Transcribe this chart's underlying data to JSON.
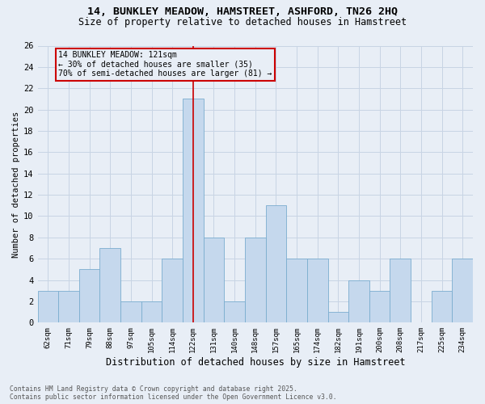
{
  "title_line1": "14, BUNKLEY MEADOW, HAMSTREET, ASHFORD, TN26 2HQ",
  "title_line2": "Size of property relative to detached houses in Hamstreet",
  "xlabel": "Distribution of detached houses by size in Hamstreet",
  "ylabel": "Number of detached properties",
  "categories": [
    "62sqm",
    "71sqm",
    "79sqm",
    "88sqm",
    "97sqm",
    "105sqm",
    "114sqm",
    "122sqm",
    "131sqm",
    "140sqm",
    "148sqm",
    "157sqm",
    "165sqm",
    "174sqm",
    "182sqm",
    "191sqm",
    "200sqm",
    "208sqm",
    "217sqm",
    "225sqm",
    "234sqm"
  ],
  "values": [
    3,
    3,
    5,
    7,
    2,
    2,
    6,
    21,
    8,
    2,
    8,
    11,
    6,
    6,
    1,
    4,
    3,
    6,
    0,
    3,
    6
  ],
  "bar_color": "#c5d8ed",
  "bar_edge_color": "#7aadcf",
  "highlight_index": 7,
  "highlight_line_color": "#cc0000",
  "annotation_text": "14 BUNKLEY MEADOW: 121sqm\n← 30% of detached houses are smaller (35)\n70% of semi-detached houses are larger (81) →",
  "annotation_box_color": "#cc0000",
  "grid_color": "#c8d4e4",
  "background_color": "#e8eef6",
  "ylim": [
    0,
    26
  ],
  "yticks": [
    0,
    2,
    4,
    6,
    8,
    10,
    12,
    14,
    16,
    18,
    20,
    22,
    24,
    26
  ],
  "footer_line1": "Contains HM Land Registry data © Crown copyright and database right 2025.",
  "footer_line2": "Contains public sector information licensed under the Open Government Licence v3.0."
}
